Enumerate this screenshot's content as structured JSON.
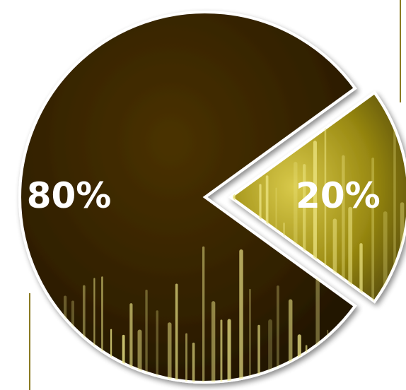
{
  "chart_data": {
    "type": "pie",
    "title": "",
    "slices": [
      {
        "label": "80%",
        "value": 80,
        "color": "#3a2605",
        "exploded": false
      },
      {
        "label": "20%",
        "value": 20,
        "color": "#a6951a",
        "exploded": true
      }
    ],
    "legend": "none"
  },
  "colors": {
    "background": "#ffffff",
    "dark_slice": "#3a2605",
    "light_slice": "#a6951a",
    "spike_glow": "#f1ea8a",
    "label_text": "#ffffff"
  }
}
